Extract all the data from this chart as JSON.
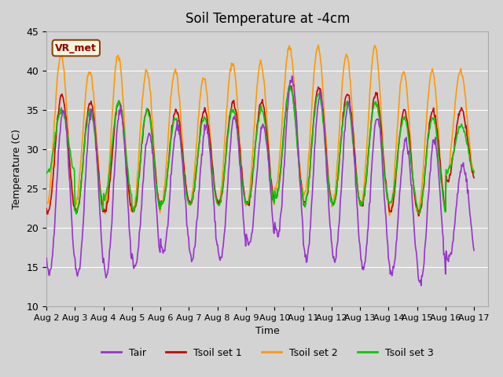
{
  "title": "Soil Temperature at -4cm",
  "xlabel": "Time",
  "ylabel": "Temperature (C)",
  "ylim": [
    10,
    45
  ],
  "xlim_days": 15.5,
  "annotation": "VR_met",
  "legend_entries": [
    "Tair",
    "Tsoil set 1",
    "Tsoil set 2",
    "Tsoil set 3"
  ],
  "colors": {
    "Tair": "#9933cc",
    "Tsoil set 1": "#cc0000",
    "Tsoil set 2": "#ff9900",
    "Tsoil set 3": "#00cc00"
  },
  "tick_dates": [
    "Aug 2",
    "Aug 3",
    "Aug 4",
    "Aug 5",
    "Aug 6",
    "Aug 7",
    "Aug 8",
    "Aug 9",
    "Aug 10",
    "Aug 11",
    "Aug 12",
    "Aug 13",
    "Aug 14",
    "Aug 15",
    "Aug 16",
    "Aug 17"
  ],
  "tick_positions": [
    0,
    1,
    2,
    3,
    4,
    5,
    6,
    7,
    8,
    9,
    10,
    11,
    12,
    13,
    14,
    15
  ],
  "yticks": [
    10,
    15,
    20,
    25,
    30,
    35,
    40,
    45
  ],
  "n_days": 15,
  "pts_per_day": 48,
  "Tair": {
    "base_min": [
      14,
      14,
      14,
      15,
      17,
      16,
      16,
      18,
      19,
      16,
      16,
      15,
      14,
      13,
      16
    ],
    "base_max": [
      35,
      35,
      35,
      32,
      33,
      33,
      34,
      33,
      39,
      37,
      36,
      34,
      31,
      31,
      28
    ]
  },
  "Tsoil1": {
    "base_min": [
      22,
      22,
      22,
      22,
      23,
      23,
      23,
      23,
      24,
      23,
      23,
      23,
      22,
      22,
      26
    ],
    "base_max": [
      37,
      36,
      36,
      35,
      35,
      35,
      36,
      36,
      38,
      38,
      37,
      37,
      35,
      35,
      35
    ]
  },
  "Tsoil2": {
    "base_min": [
      23,
      23,
      22,
      22,
      23,
      23,
      23,
      23,
      25,
      24,
      23,
      23,
      22,
      22,
      27
    ],
    "base_max": [
      42,
      40,
      42,
      40,
      40,
      39,
      41,
      41,
      43,
      43,
      42,
      43,
      40,
      40,
      40
    ]
  },
  "Tsoil3": {
    "base_min": [
      27,
      22,
      24,
      22,
      23,
      23,
      23,
      23,
      24,
      23,
      23,
      23,
      23,
      22,
      27
    ],
    "base_max": [
      35,
      35,
      36,
      35,
      34,
      34,
      35,
      35,
      38,
      37,
      36,
      36,
      34,
      34,
      33
    ]
  }
}
